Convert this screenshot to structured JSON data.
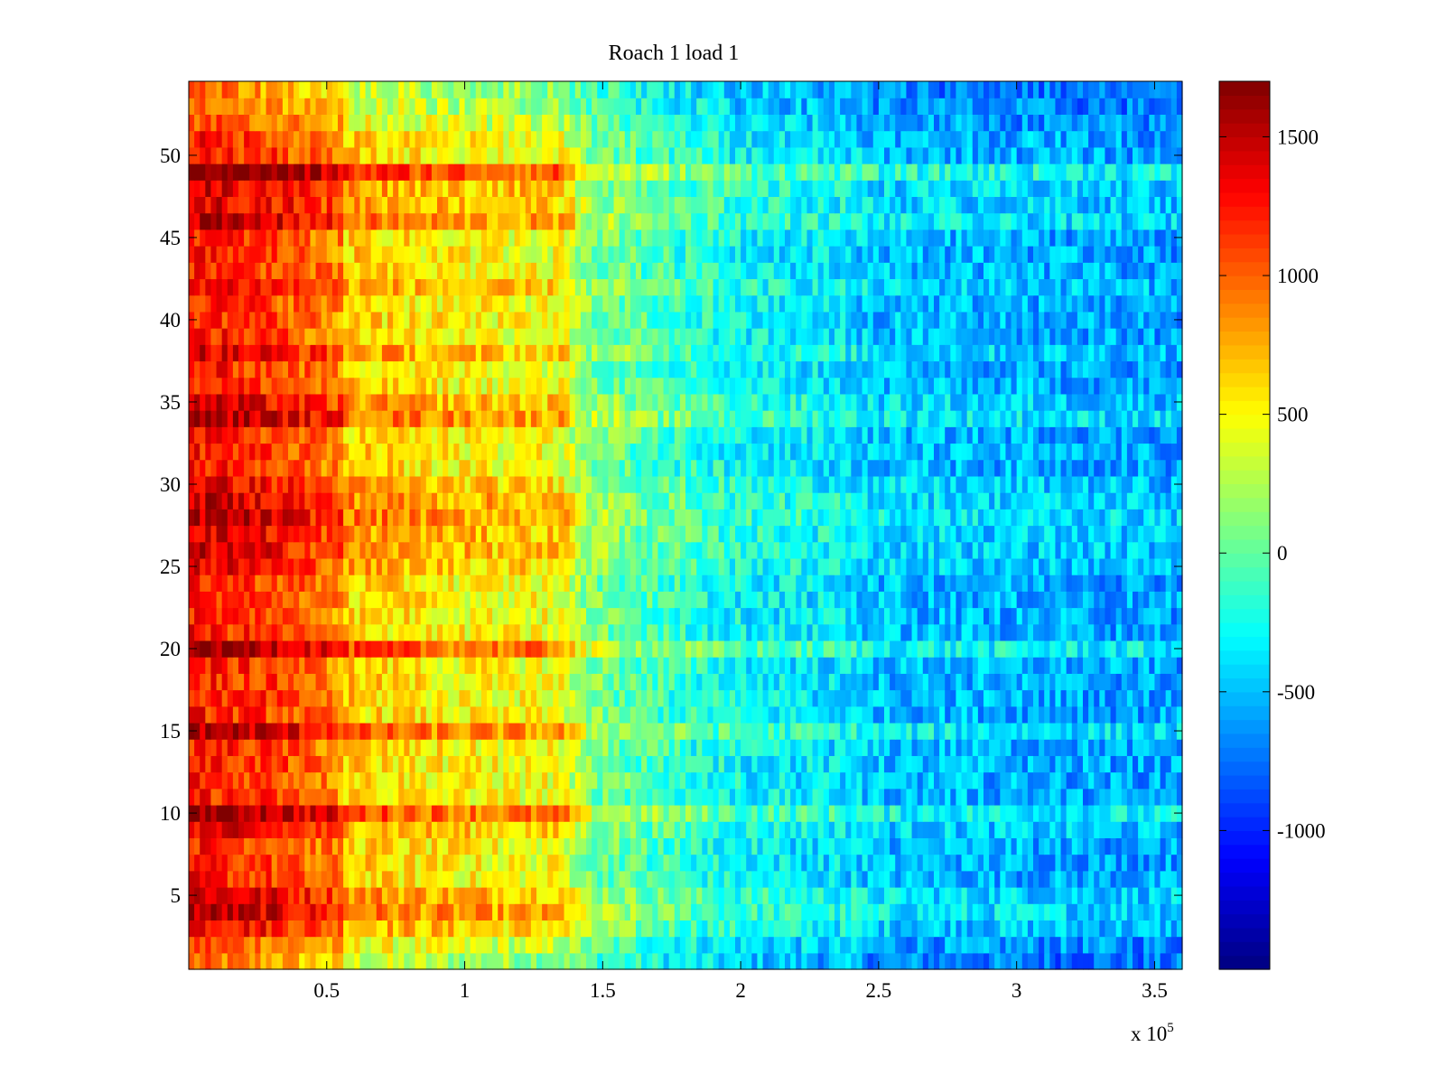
{
  "chart_data": {
    "type": "heatmap",
    "title": "Roach 1 load 1",
    "xlabel": "",
    "ylabel": "",
    "x_multiplier_label": {
      "base": "x 10",
      "exponent": "5"
    },
    "xlim": [
      0,
      3.6
    ],
    "ylim": [
      0.5,
      54.5
    ],
    "x_ticks": [
      0.5,
      1,
      1.5,
      2,
      2.5,
      3,
      3.5
    ],
    "x_tick_labels": [
      "0.5",
      "1",
      "1.5",
      "2",
      "2.5",
      "3",
      "3.5"
    ],
    "y_ticks": [
      5,
      10,
      15,
      20,
      25,
      30,
      35,
      40,
      45,
      50
    ],
    "y_tick_labels": [
      "5",
      "10",
      "15",
      "20",
      "25",
      "30",
      "35",
      "40",
      "45",
      "50"
    ],
    "rows": 54,
    "colorbar": {
      "colormap": "jet",
      "clim": [
        -1500,
        1700
      ],
      "ticks": [
        -1000,
        -500,
        0,
        500,
        1000,
        1500
      ],
      "tick_labels": [
        "-1000",
        "-500",
        "0",
        "500",
        "1000",
        "1500"
      ]
    },
    "column_profile": {
      "x": [
        0,
        0.3,
        0.55,
        0.56,
        1.0,
        1.35,
        1.45,
        1.7,
        2.0,
        2.4,
        2.5,
        3.0,
        3.6
      ],
      "mean_value": [
        1250,
        1100,
        850,
        650,
        500,
        450,
        100,
        -100,
        -300,
        -400,
        -500,
        -550,
        -600
      ]
    },
    "row_offsets": {
      "rows": [
        1,
        2,
        3,
        4,
        5,
        9,
        10,
        15,
        20,
        25,
        26,
        27,
        28,
        29,
        30,
        34,
        35,
        38,
        42,
        46,
        47,
        48,
        49,
        52,
        53,
        54
      ],
      "offset": [
        -300,
        -150,
        150,
        300,
        250,
        150,
        450,
        350,
        450,
        150,
        200,
        200,
        300,
        250,
        150,
        350,
        200,
        200,
        150,
        300,
        200,
        200,
        550,
        -150,
        -250,
        -300
      ]
    },
    "grid": false
  }
}
